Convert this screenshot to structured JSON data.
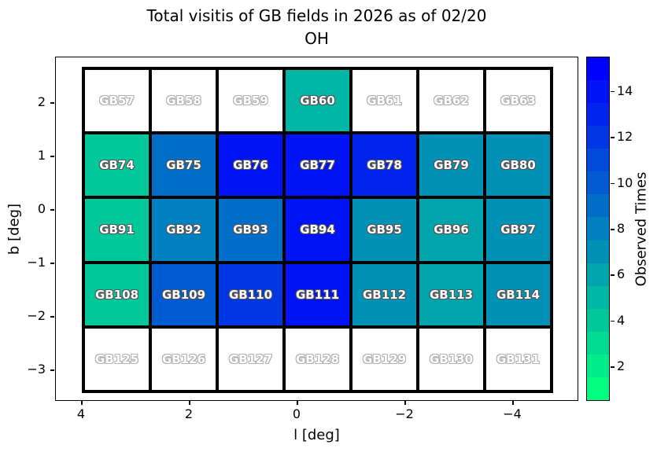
{
  "title": {
    "line1": "Total visitis of GB fields in 2026 as of 02/20",
    "line2": "OH"
  },
  "axes": {
    "xlabel": "l [deg]",
    "ylabel": "b [deg]",
    "x_ticks": [
      "4",
      "2",
      "0",
      "−2",
      "−4"
    ],
    "y_ticks": [
      "2",
      "1",
      "0",
      "−1",
      "−2",
      "−3"
    ]
  },
  "colorbar": {
    "label": "Observed Times",
    "ticks": [
      2,
      4,
      6,
      8,
      10,
      12,
      14
    ],
    "vmin": 1,
    "vmax": 15,
    "bottom_color": "#00ff80",
    "top_color": "#0000ff"
  },
  "chart_data": {
    "type": "heatmap",
    "title": "Total visitis of GB fields in 2026 as of 02/20 OH",
    "xlabel": "l [deg]",
    "ylabel": "b [deg]",
    "x_tick_values": [
      4,
      2,
      0,
      -2,
      -4
    ],
    "y_tick_values": [
      2,
      1,
      0,
      -1,
      -2,
      -3
    ],
    "x_axis_inverted": true,
    "colormap": "winter_r",
    "colorbar_label": "Observed Times",
    "value_range": [
      1,
      15
    ],
    "unobserved_fill": "#ffffff",
    "cells": [
      [
        {
          "label": "GB57",
          "observed": null,
          "color": "#ffffff"
        },
        {
          "label": "GB58",
          "observed": null,
          "color": "#ffffff"
        },
        {
          "label": "GB59",
          "observed": null,
          "color": "#ffffff"
        },
        {
          "label": "GB60",
          "observed": 5,
          "color": "#00b6a4"
        },
        {
          "label": "GB61",
          "observed": null,
          "color": "#ffffff"
        },
        {
          "label": "GB62",
          "observed": null,
          "color": "#ffffff"
        },
        {
          "label": "GB63",
          "observed": null,
          "color": "#ffffff"
        }
      ],
      [
        {
          "label": "GB74",
          "observed": 4,
          "color": "#00c89b"
        },
        {
          "label": "GB75",
          "observed": 9,
          "color": "#006dc9"
        },
        {
          "label": "GB76",
          "observed": 14,
          "color": "#0012f6"
        },
        {
          "label": "GB77",
          "observed": 14,
          "color": "#0012f6"
        },
        {
          "label": "GB78",
          "observed": 13,
          "color": "#0024ed"
        },
        {
          "label": "GB79",
          "observed": 7,
          "color": "#0092b6"
        },
        {
          "label": "GB80",
          "observed": 7,
          "color": "#0092b6"
        }
      ],
      [
        {
          "label": "GB91",
          "observed": 4,
          "color": "#00c89b"
        },
        {
          "label": "GB92",
          "observed": 8,
          "color": "#0080c0"
        },
        {
          "label": "GB93",
          "observed": 9,
          "color": "#006dc9"
        },
        {
          "label": "GB94",
          "observed": 14,
          "color": "#0012f6"
        },
        {
          "label": "GB95",
          "observed": 7,
          "color": "#0092b6"
        },
        {
          "label": "GB96",
          "observed": 6,
          "color": "#00a4ad"
        },
        {
          "label": "GB97",
          "observed": 7,
          "color": "#0092b6"
        }
      ],
      [
        {
          "label": "GB108",
          "observed": 4,
          "color": "#00c89b"
        },
        {
          "label": "GB109",
          "observed": 10,
          "color": "#005bd2"
        },
        {
          "label": "GB110",
          "observed": 12,
          "color": "#0037e4"
        },
        {
          "label": "GB111",
          "observed": 14,
          "color": "#0012f6"
        },
        {
          "label": "GB112",
          "observed": 7,
          "color": "#0092b6"
        },
        {
          "label": "GB113",
          "observed": 6,
          "color": "#00a4ad"
        },
        {
          "label": "GB114",
          "observed": 7,
          "color": "#0092b6"
        }
      ],
      [
        {
          "label": "GB125",
          "observed": null,
          "color": "#ffffff"
        },
        {
          "label": "GB126",
          "observed": null,
          "color": "#ffffff"
        },
        {
          "label": "GB127",
          "observed": null,
          "color": "#ffffff"
        },
        {
          "label": "GB128",
          "observed": null,
          "color": "#ffffff"
        },
        {
          "label": "GB129",
          "observed": null,
          "color": "#ffffff"
        },
        {
          "label": "GB130",
          "observed": null,
          "color": "#ffffff"
        },
        {
          "label": "GB131",
          "observed": null,
          "color": "#ffffff"
        }
      ]
    ]
  }
}
